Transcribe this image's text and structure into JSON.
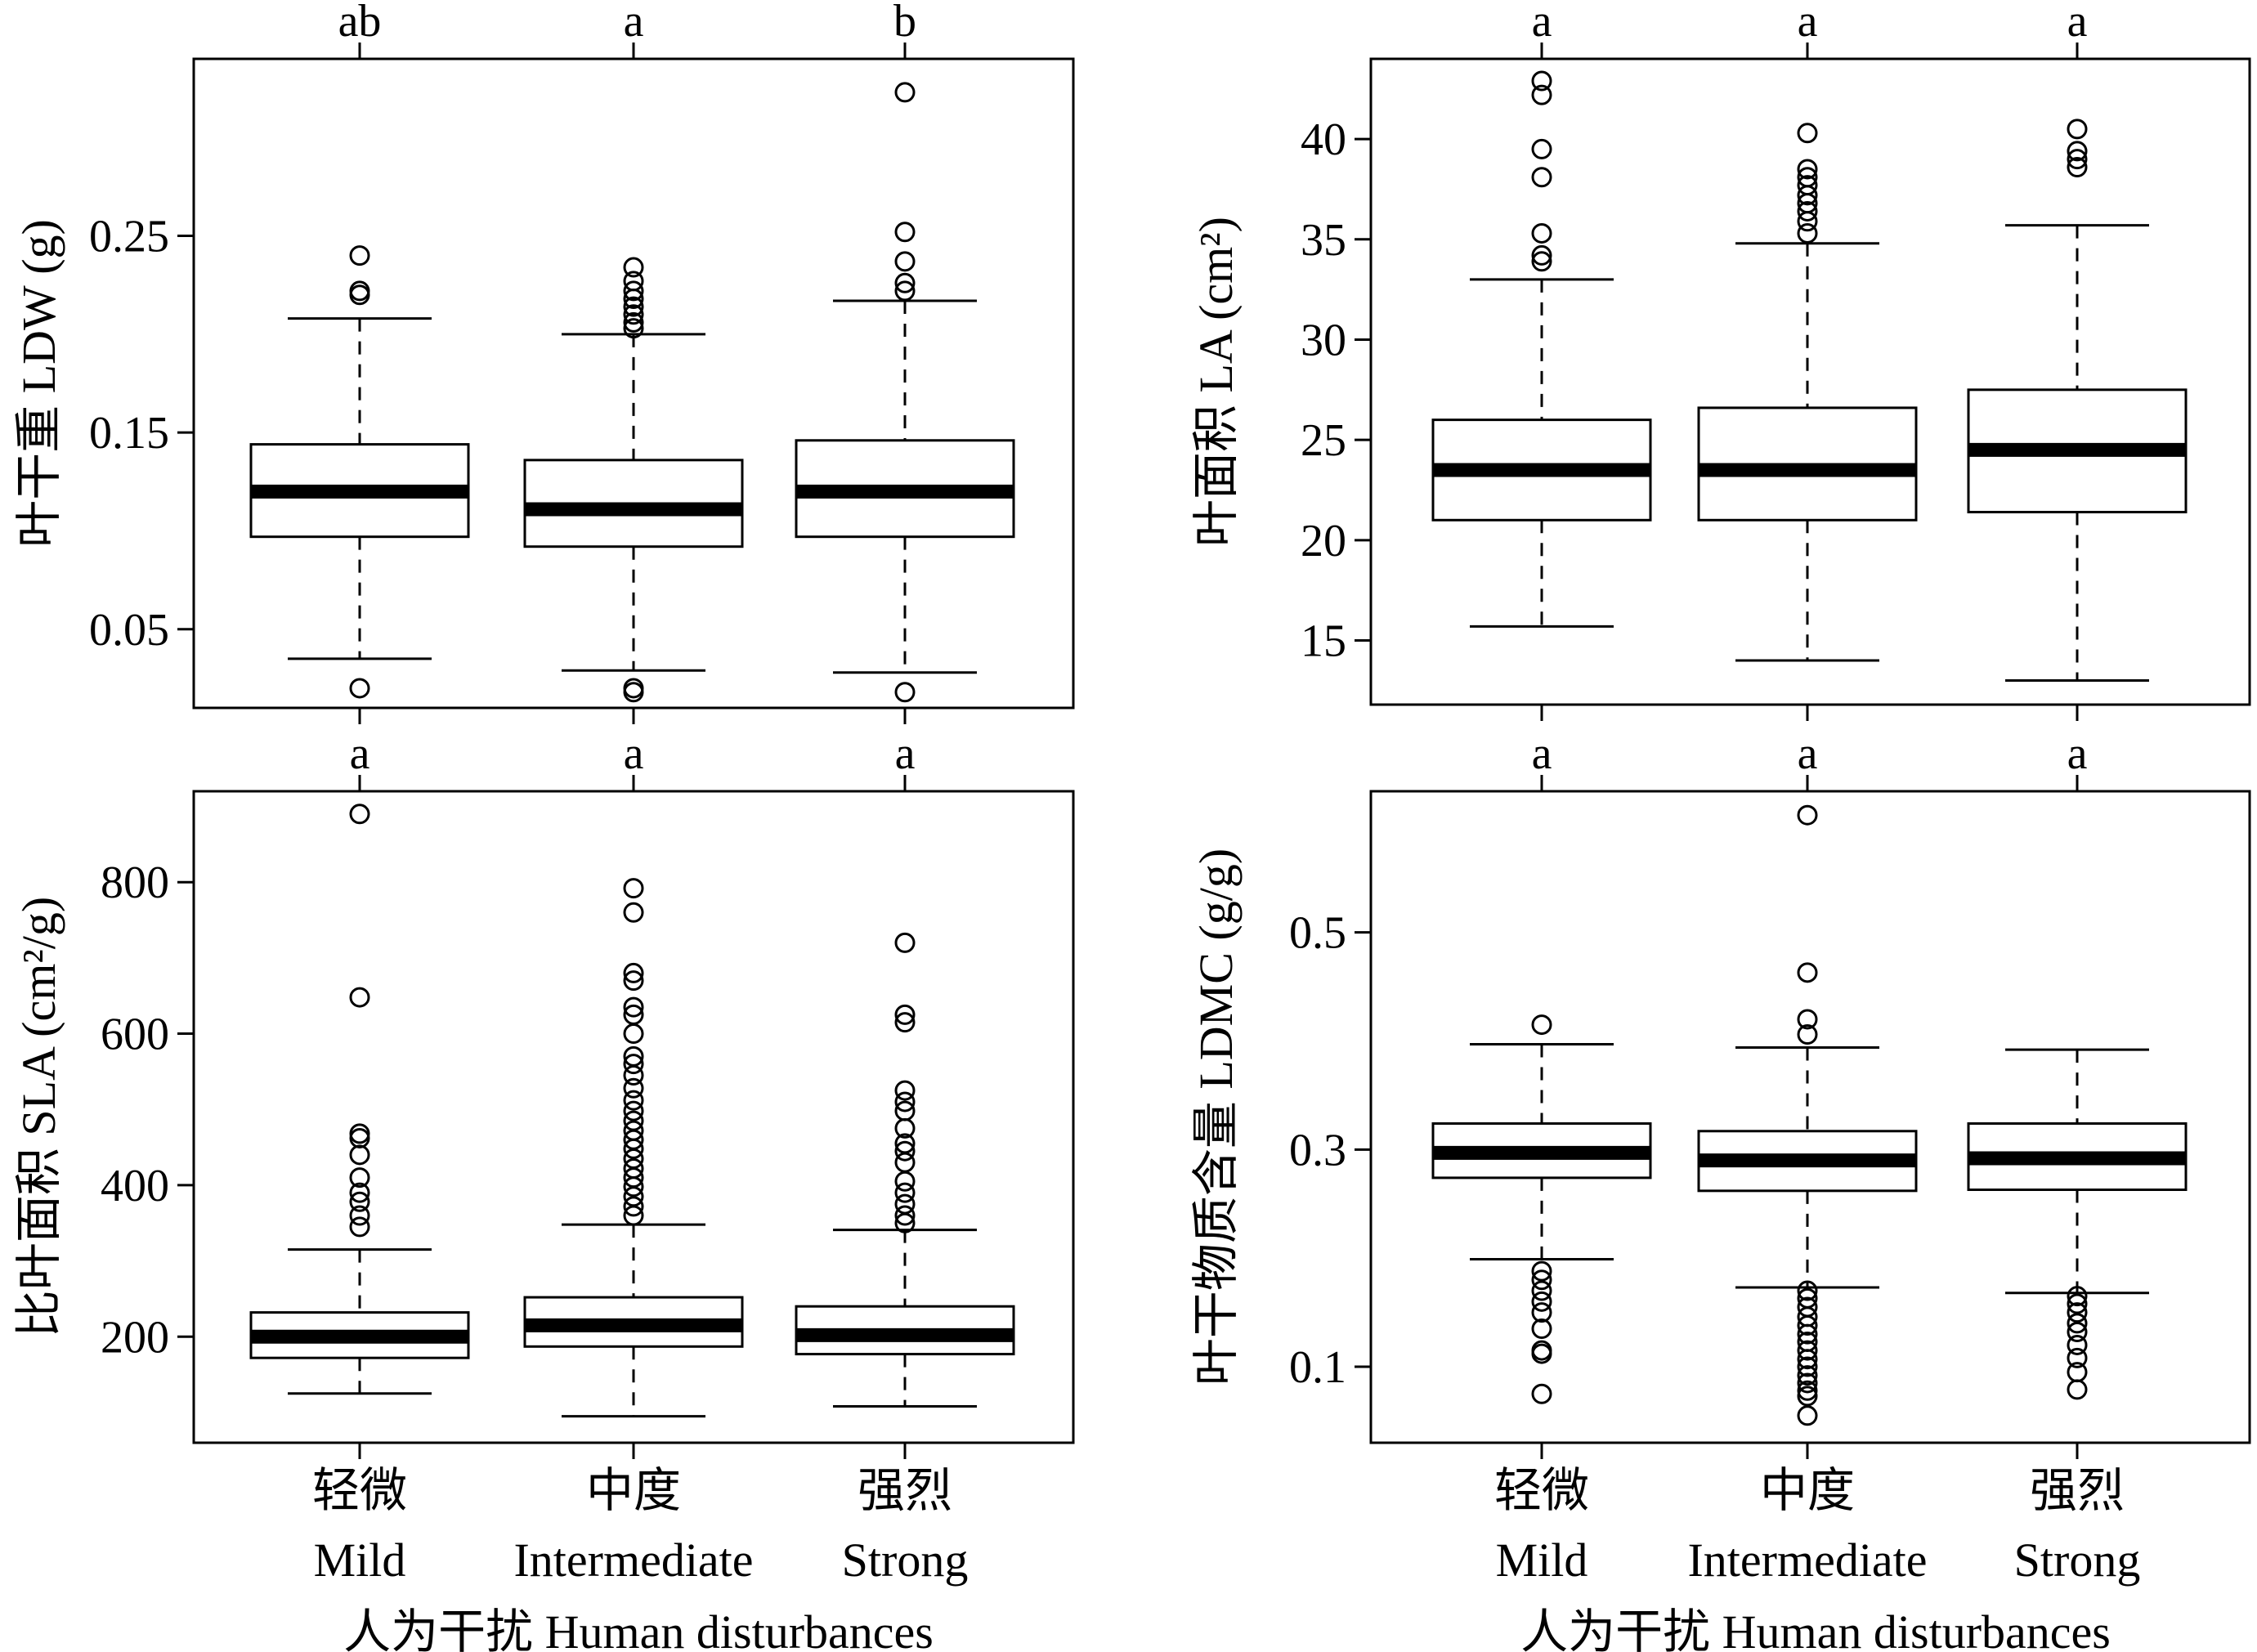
{
  "figure": {
    "xlabel": "人为干扰 Human disturbances",
    "categories_cn": [
      "轻微",
      "中度",
      "强烈"
    ],
    "categories_en": [
      "Mild",
      "Intermediate",
      "Strong"
    ]
  },
  "chart_data": [
    {
      "type": "box",
      "ylabel": "叶干重 LDW (g)",
      "ylim": [
        0.01,
        0.34
      ],
      "yticks": [
        0.05,
        0.15,
        0.25
      ],
      "ytick_labels": [
        "0.05",
        "0.15",
        "0.25"
      ],
      "categories": [
        "Mild",
        "Intermediate",
        "Strong"
      ],
      "significance": [
        "ab",
        "a",
        "b"
      ],
      "boxes": [
        {
          "whisker_low": 0.035,
          "q1": 0.097,
          "median": 0.12,
          "q3": 0.144,
          "whisker_high": 0.208,
          "outliers": [
            0.02,
            0.22,
            0.222,
            0.24
          ]
        },
        {
          "whisker_low": 0.029,
          "q1": 0.092,
          "median": 0.111,
          "q3": 0.136,
          "whisker_high": 0.2,
          "outliers": [
            0.018,
            0.02,
            0.203,
            0.206,
            0.21,
            0.214,
            0.218,
            0.222,
            0.227,
            0.234
          ]
        },
        {
          "whisker_low": 0.028,
          "q1": 0.097,
          "median": 0.12,
          "q3": 0.146,
          "whisker_high": 0.217,
          "outliers": [
            0.018,
            0.222,
            0.226,
            0.237,
            0.252,
            0.323
          ]
        }
      ]
    },
    {
      "type": "box",
      "ylabel": "叶面积 LA (cm²)",
      "ylim": [
        11.8,
        44.0
      ],
      "yticks": [
        15,
        20,
        25,
        30,
        35,
        40
      ],
      "ytick_labels": [
        "15",
        "20",
        "25",
        "30",
        "35",
        "40"
      ],
      "categories": [
        "Mild",
        "Intermediate",
        "Strong"
      ],
      "significance": [
        "a",
        "a",
        "a"
      ],
      "boxes": [
        {
          "whisker_low": 15.7,
          "q1": 21.0,
          "median": 23.5,
          "q3": 26.0,
          "whisker_high": 33.0,
          "outliers": [
            33.9,
            34.2,
            35.3,
            38.1,
            39.5,
            42.2,
            42.9
          ]
        },
        {
          "whisker_low": 14.0,
          "q1": 21.0,
          "median": 23.5,
          "q3": 26.6,
          "whisker_high": 34.8,
          "outliers": [
            35.3,
            35.9,
            36.4,
            36.8,
            37.2,
            37.7,
            38.1,
            38.5,
            40.3
          ]
        },
        {
          "whisker_low": 13.0,
          "q1": 21.4,
          "median": 24.5,
          "q3": 27.5,
          "whisker_high": 35.7,
          "outliers": [
            38.6,
            39.0,
            39.4,
            40.5
          ]
        }
      ]
    },
    {
      "type": "box",
      "ylabel": "比叶面积 SLA (cm²/g)",
      "ylim": [
        60,
        920
      ],
      "yticks": [
        200,
        400,
        600,
        800
      ],
      "ytick_labels": [
        "200",
        "400",
        "600",
        "800"
      ],
      "categories": [
        "Mild",
        "Intermediate",
        "Strong"
      ],
      "significance": [
        "a",
        "a",
        "a"
      ],
      "boxes": [
        {
          "whisker_low": 125,
          "q1": 172,
          "median": 200,
          "q3": 232,
          "whisker_high": 315,
          "outliers": [
            345,
            360,
            378,
            390,
            410,
            440,
            462,
            468,
            648,
            890
          ]
        },
        {
          "whisker_low": 95,
          "q1": 187,
          "median": 215,
          "q3": 252,
          "whisker_high": 348,
          "outliers": [
            360,
            372,
            385,
            398,
            410,
            422,
            435,
            448,
            460,
            472,
            485,
            498,
            512,
            528,
            545,
            560,
            570,
            600,
            625,
            635,
            670,
            680,
            760,
            792
          ]
        },
        {
          "whisker_low": 108,
          "q1": 177,
          "median": 202,
          "q3": 240,
          "whisker_high": 341,
          "outliers": [
            350,
            360,
            375,
            390,
            405,
            430,
            445,
            455,
            475,
            498,
            510,
            525,
            615,
            625,
            720
          ]
        }
      ]
    },
    {
      "type": "box",
      "ylabel": "叶干物质含量 LDMC (g/g)",
      "ylim": [
        0.03,
        0.63
      ],
      "yticks": [
        0.1,
        0.3,
        0.5
      ],
      "ytick_labels": [
        "0.1",
        "0.3",
        "0.5"
      ],
      "categories": [
        "Mild",
        "Intermediate",
        "Strong"
      ],
      "significance": [
        "a",
        "a",
        "a"
      ],
      "boxes": [
        {
          "whisker_low": 0.199,
          "q1": 0.274,
          "median": 0.297,
          "q3": 0.324,
          "whisker_high": 0.397,
          "outliers": [
            0.075,
            0.112,
            0.115,
            0.135,
            0.15,
            0.16,
            0.17,
            0.18,
            0.188,
            0.415
          ]
        },
        {
          "whisker_low": 0.173,
          "q1": 0.262,
          "median": 0.29,
          "q3": 0.317,
          "whisker_high": 0.394,
          "outliers": [
            0.055,
            0.073,
            0.078,
            0.085,
            0.092,
            0.1,
            0.107,
            0.115,
            0.123,
            0.13,
            0.138,
            0.146,
            0.155,
            0.163,
            0.17,
            0.406,
            0.42,
            0.463,
            0.608
          ]
        },
        {
          "whisker_low": 0.168,
          "q1": 0.263,
          "median": 0.292,
          "q3": 0.324,
          "whisker_high": 0.392,
          "outliers": [
            0.079,
            0.095,
            0.108,
            0.12,
            0.132,
            0.14,
            0.15,
            0.158,
            0.165
          ]
        }
      ]
    }
  ]
}
